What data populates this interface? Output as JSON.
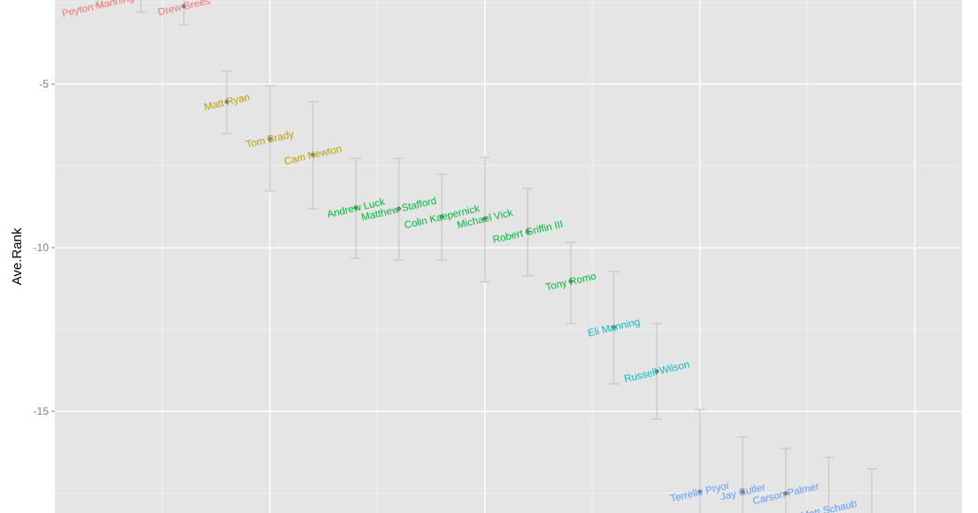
{
  "chart_data": {
    "type": "scatter",
    "title": "",
    "xlabel": "",
    "ylabel": "Ave.Rank",
    "xlim": [
      0,
      21.1
    ],
    "ylim": [
      -18.11,
      -2.43
    ],
    "y_ticks": [
      -5,
      -10,
      -15
    ],
    "y_tick_labels": [
      "-5",
      "-10",
      "-15"
    ],
    "grid": true,
    "error_bars": true,
    "background": "#E5E5E5",
    "point_color": "#7F7F7F",
    "errorbar_color": "#C8C8C8",
    "points": [
      {
        "x": 1,
        "y": -1.8,
        "lower": -2.6,
        "upper": -1.0,
        "label": "Peyton Manning",
        "color": "#F8766D"
      },
      {
        "x": 2,
        "y": -2.0,
        "lower": -2.8,
        "upper": -1.2,
        "label": "",
        "color": "#F8766D"
      },
      {
        "x": 3,
        "y": -2.62,
        "lower": -3.19,
        "upper": -2.0,
        "label": "Drew Brees",
        "color": "#F8766D"
      },
      {
        "x": 4,
        "y": -5.54,
        "lower": -6.51,
        "upper": -4.6,
        "label": "Matt Ryan",
        "color": "#B79F00"
      },
      {
        "x": 5,
        "y": -6.68,
        "lower": -8.27,
        "upper": -5.05,
        "label": "Tom Brady",
        "color": "#B79F00"
      },
      {
        "x": 6,
        "y": -7.16,
        "lower": -8.81,
        "upper": -5.54,
        "label": "Cam Newton",
        "color": "#B79F00"
      },
      {
        "x": 7,
        "y": -8.78,
        "lower": -10.32,
        "upper": -7.27,
        "label": "Andrew Luck",
        "color": "#00BA38"
      },
      {
        "x": 8,
        "y": -8.81,
        "lower": -10.38,
        "upper": -7.27,
        "label": "Matthew Stafford",
        "color": "#00BA38"
      },
      {
        "x": 9,
        "y": -9.05,
        "lower": -10.38,
        "upper": -7.76,
        "label": "Colin Kaepernick",
        "color": "#00BA38"
      },
      {
        "x": 10,
        "y": -9.11,
        "lower": -11.05,
        "upper": -7.24,
        "label": "Michael Vick",
        "color": "#00BA38"
      },
      {
        "x": 11,
        "y": -9.51,
        "lower": -10.86,
        "upper": -8.19,
        "label": "Robert Griffin III",
        "color": "#00BA38"
      },
      {
        "x": 12,
        "y": -11.03,
        "lower": -12.32,
        "upper": -9.84,
        "label": "Tony Romo",
        "color": "#00BA38"
      },
      {
        "x": 13,
        "y": -12.43,
        "lower": -14.16,
        "upper": -10.73,
        "label": "Eli Manning",
        "color": "#00BFC4"
      },
      {
        "x": 14,
        "y": -13.78,
        "lower": -15.24,
        "upper": -12.32,
        "label": "Russell Wilson",
        "color": "#00BFC4"
      },
      {
        "x": 15,
        "y": -17.46,
        "lower": -20.0,
        "upper": -14.95,
        "label": "Terrelle Pryor",
        "color": "#619CFF"
      },
      {
        "x": 16,
        "y": -17.46,
        "lower": -19.2,
        "upper": -15.78,
        "label": "Jay Cutler",
        "color": "#619CFF"
      },
      {
        "x": 17,
        "y": -17.51,
        "lower": -19.0,
        "upper": -16.14,
        "label": "Carson Palmer",
        "color": "#619CFF"
      },
      {
        "x": 18,
        "y": -18.3,
        "lower": -20.2,
        "upper": -16.41,
        "label": "Matt Schaub",
        "color": "#619CFF"
      },
      {
        "x": 19,
        "y": -18.6,
        "lower": -20.5,
        "upper": -16.76,
        "label": "",
        "color": "#619CFF"
      }
    ]
  }
}
